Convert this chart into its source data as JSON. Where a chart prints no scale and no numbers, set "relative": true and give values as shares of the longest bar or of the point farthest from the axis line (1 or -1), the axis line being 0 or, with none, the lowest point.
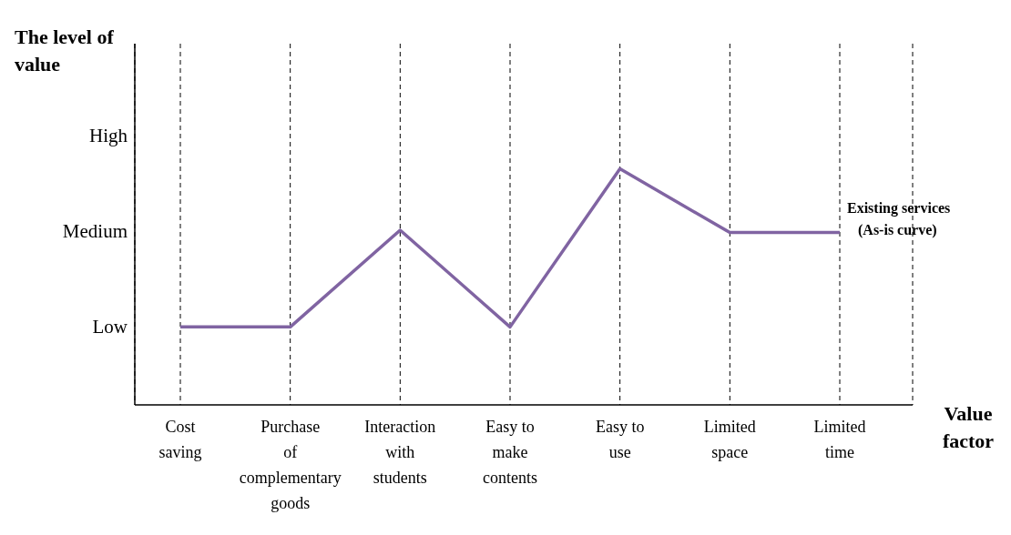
{
  "chart_data": {
    "type": "line",
    "ylabel": "The level of value",
    "xlabel": "Value factor",
    "relative": true,
    "categories": [
      "Cost saving",
      "Purchase of complementary goods",
      "Interaction with students",
      "Easy to make contents",
      "Easy to use",
      "Limited space",
      "Limited time"
    ],
    "series": [
      {
        "name": "Existing services (As-is curve)",
        "color": "#8064a2",
        "values": [
          0.33,
          0.33,
          0.74,
          0.33,
          1,
          0.73,
          0.73
        ]
      }
    ],
    "annotations": [
      "Low",
      "Medium",
      "High"
    ],
    "grid": "x",
    "legend": false,
    "marker": "none",
    "line_style": "solid"
  }
}
